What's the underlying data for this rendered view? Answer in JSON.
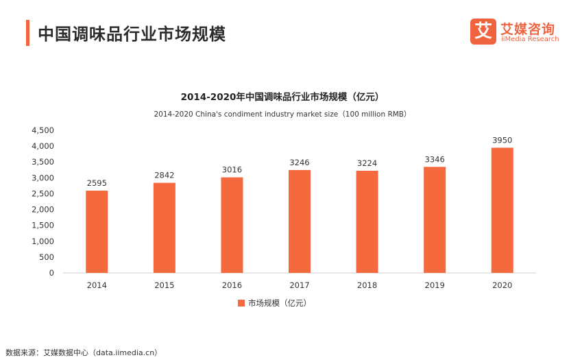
{
  "header": {
    "title": "中国调味品行业市场规模",
    "accent_color": "#f0633f"
  },
  "logo": {
    "mark": "艾",
    "name_cn": "艾媒咨询",
    "name_en": "iiMedia Research",
    "color": "#f0633f"
  },
  "chart_data": {
    "type": "bar",
    "title": "2014-2020年中国调味品行业市场规模（亿元）",
    "subtitle": "2014-2020 China's condiment industry market size（100 million RMB）",
    "categories": [
      "2014",
      "2015",
      "2016",
      "2017",
      "2018",
      "2019",
      "2020"
    ],
    "series": [
      {
        "name": "市场规模（亿元）",
        "values": [
          2595,
          2842,
          3016,
          3246,
          3224,
          3346,
          3950
        ],
        "color": "#f46a3e"
      }
    ],
    "data_labels": [
      "2595",
      "2842",
      "3016",
      "3246",
      "3224",
      "3346",
      "3950"
    ],
    "y_ticks": [
      "0",
      "500",
      "1,000",
      "1,500",
      "2,000",
      "2,500",
      "3,000",
      "3,500",
      "4,000",
      "4,500"
    ],
    "ylim": [
      0,
      4500
    ],
    "grid": false,
    "legend_position": "bottom-center"
  },
  "footer": {
    "source": "数据来源：艾媒数据中心（data.iimedia.cn）"
  }
}
